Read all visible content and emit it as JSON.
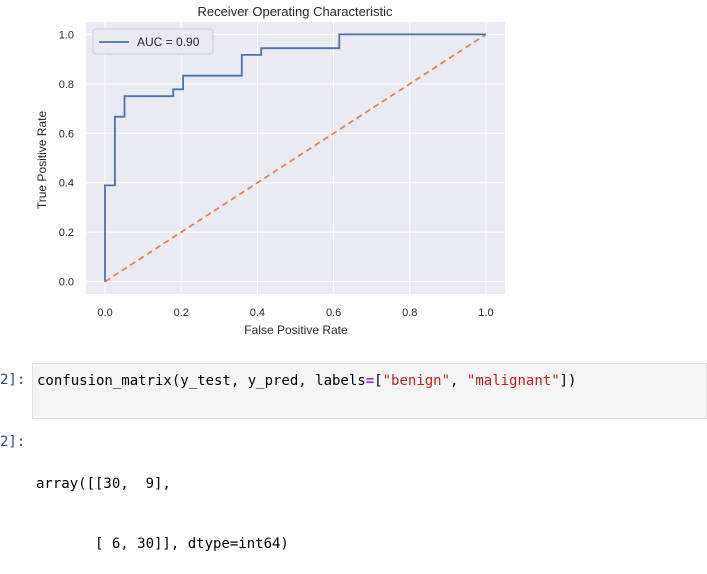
{
  "chart_data": {
    "type": "line",
    "title": "Receiver Operating Characteristic",
    "xlabel": "False Positive Rate",
    "ylabel": "True Positive Rate",
    "xlim": [
      -0.05,
      1.05
    ],
    "ylim": [
      -0.05,
      1.05
    ],
    "xticks": [
      "0.0",
      "0.2",
      "0.4",
      "0.6",
      "0.8",
      "1.0"
    ],
    "yticks": [
      "0.0",
      "0.2",
      "0.4",
      "0.6",
      "0.8",
      "1.0"
    ],
    "xtick_values": [
      0,
      0.2,
      0.4,
      0.6,
      0.8,
      1.0
    ],
    "ytick_values": [
      0,
      0.2,
      0.4,
      0.6,
      0.8,
      1.0
    ],
    "grid": true,
    "legend_position": "upper-left",
    "series": [
      {
        "name": "AUC = 0.90",
        "color": "#4c72b0",
        "style": "solid",
        "x": [
          0.0,
          0.0,
          0.026,
          0.026,
          0.051,
          0.051,
          0.179,
          0.179,
          0.205,
          0.205,
          0.359,
          0.359,
          0.41,
          0.41,
          0.615,
          0.615,
          1.0
        ],
        "y": [
          0.0,
          0.389,
          0.389,
          0.667,
          0.667,
          0.75,
          0.75,
          0.778,
          0.778,
          0.833,
          0.833,
          0.917,
          0.917,
          0.944,
          0.944,
          1.0,
          1.0
        ]
      },
      {
        "name": "",
        "color": "#dd8452",
        "style": "dashed",
        "x": [
          0.0,
          1.0
        ],
        "y": [
          0.0,
          1.0
        ]
      }
    ]
  },
  "cells": [
    {
      "prompt": "2]:",
      "code_parts": [
        {
          "text": "confusion_matrix(y_test, y_pred, labels",
          "cls": "tok-fn"
        },
        {
          "text": "=",
          "cls": "tok-op"
        },
        {
          "text": "[",
          "cls": "tok-fn"
        },
        {
          "text": "\"benign\"",
          "cls": "tok-str"
        },
        {
          "text": ", ",
          "cls": "tok-fn"
        },
        {
          "text": "\"malignant\"",
          "cls": "tok-str"
        },
        {
          "text": "])",
          "cls": "tok-fn"
        }
      ]
    }
  ],
  "output": {
    "prompt": "2]:",
    "lines": [
      "array([[30,  9],",
      "       [ 6, 30]], dtype=int64)"
    ]
  }
}
